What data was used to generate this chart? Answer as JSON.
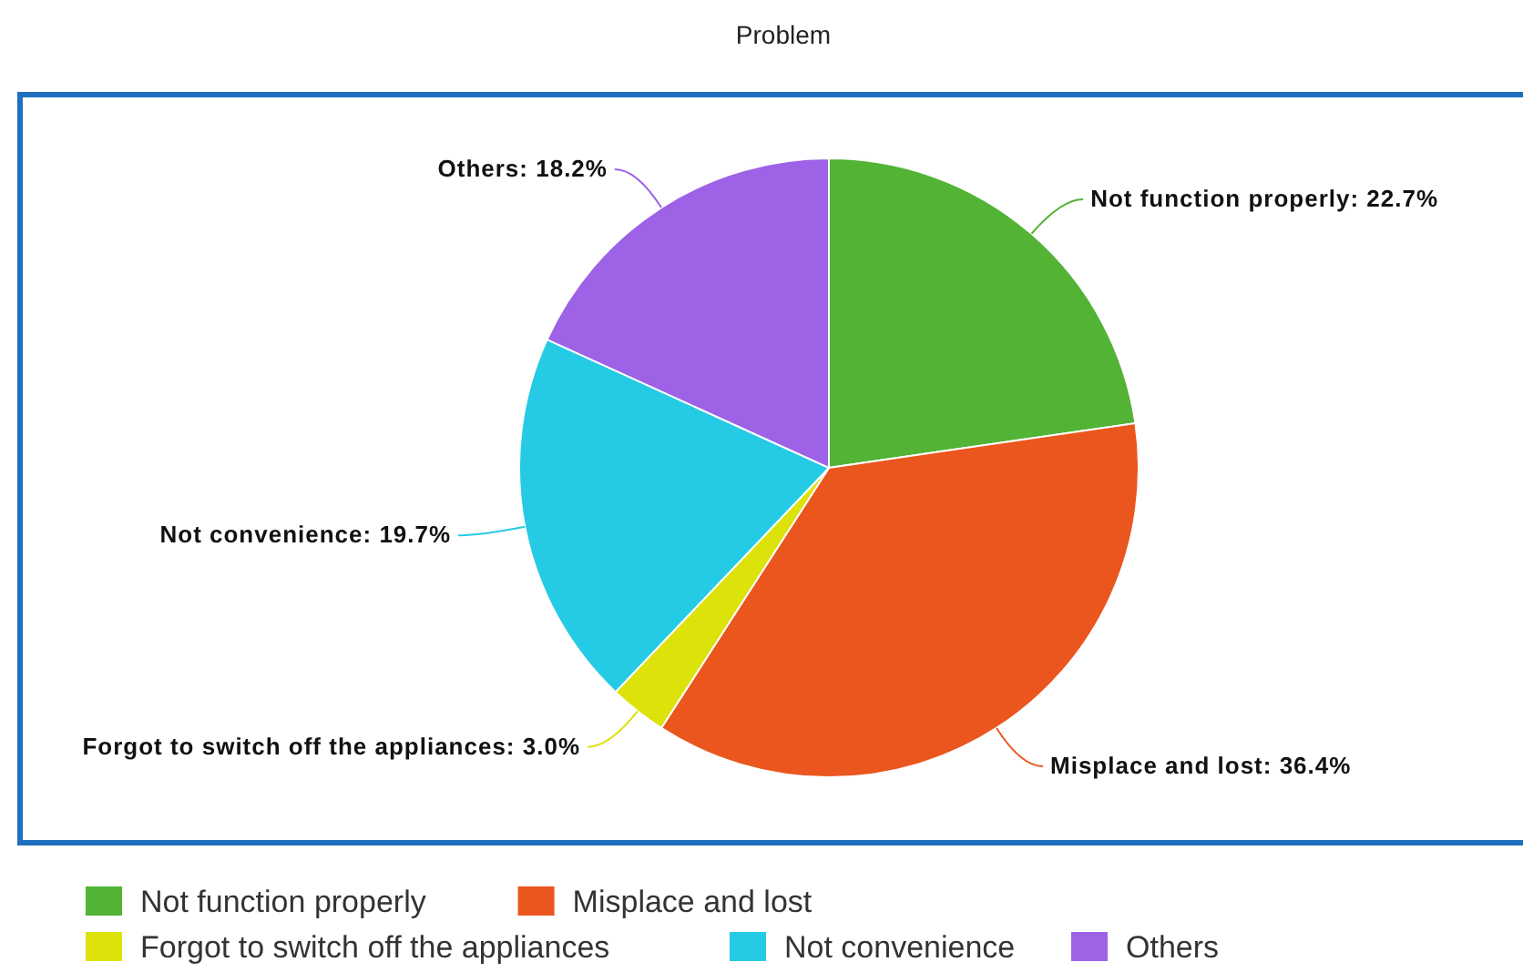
{
  "chart_data": {
    "type": "pie",
    "title": "Problem",
    "categories": [
      "Not function properly",
      "Misplace and lost",
      "Forgot to switch off the appliances",
      "Not convenience",
      "Others"
    ],
    "values": [
      22.7,
      36.4,
      3.0,
      19.7,
      18.2
    ],
    "value_labels": [
      "Not function properly: 22.7%",
      "Misplace and lost: 36.4%",
      "Forgot to switch off the appliances: 3.0%",
      "Not convenience: 19.7%",
      "Others: 18.2%"
    ],
    "colors": [
      "#52b335",
      "#ea561d",
      "#dce20a",
      "#25cbe4",
      "#9d62e6"
    ],
    "legend": "bottom"
  }
}
